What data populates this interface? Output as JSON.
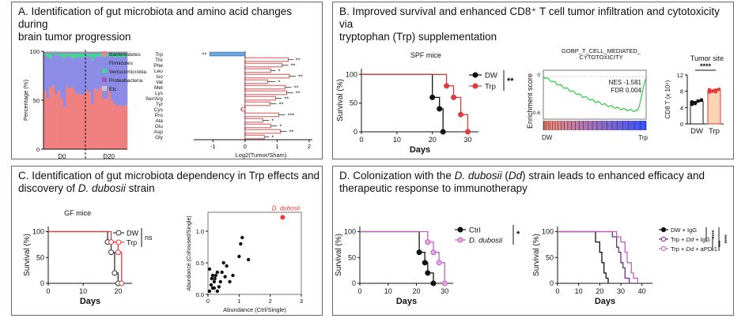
{
  "panels": {
    "a": {
      "title_l1": "A. Identification of gut microbiota and amino acid changes during",
      "title_l2": "brain tumor progression"
    },
    "b": {
      "title_l1": "B. Improved survival and enhanced CD8⁺ T cell tumor infiltration and cytotoxicity via",
      "title_l2": "tryptophan (Trp) supplementation"
    },
    "c": {
      "title_l1": "C. Identification of gut microbiota dependency in Trp effects and",
      "title_l2_pre": "discovery of ",
      "title_l2_italic": "D. dubosii",
      "title_l2_post": " strain"
    },
    "d": {
      "title_l1_pre": "D. Colonization with the ",
      "title_l1_italic": "D. dubosii",
      "title_l1_mid": " (",
      "title_l1_italic2": "Dd",
      "title_l1_post": ") strain leads to enhanced efficacy and",
      "title_l2": "therapeutic response to immunotherapy"
    }
  },
  "colors": {
    "red": "#e83a3a",
    "salmon": "#f08080",
    "blue": "#6b8be8",
    "magenta": "#c060c0",
    "bar_border": "#d04040",
    "trp_bar": "#6fa8dc"
  },
  "chart_data": [
    {
      "id": "a1",
      "type": "bar",
      "stacked": true,
      "ylabel": "Percentage (%)",
      "ylim": [
        0,
        100
      ],
      "yticks": [
        "0",
        "50",
        "100"
      ],
      "group_labels": [
        "D0",
        "D20"
      ],
      "legend": [
        "Bacteroidetes",
        "Firmicutes",
        "Verrucomicrobia",
        "Proteobacteria",
        "Etc"
      ],
      "legend_colors": [
        "#f08080",
        "#8c8ce6",
        "#40d890",
        "#9b59b6",
        "#c8c8c8"
      ],
      "bacteroidetes": [
        60,
        52,
        63,
        65,
        56,
        60,
        52,
        43,
        64,
        62,
        63,
        58,
        56,
        56,
        56,
        60,
        58,
        46,
        62,
        60,
        63,
        52,
        51,
        60,
        50,
        46,
        44,
        45,
        44,
        45
      ],
      "firmicutes": [
        36,
        42,
        30,
        33,
        40,
        36,
        42,
        50,
        32,
        33,
        30,
        36,
        38,
        38,
        38,
        35,
        37,
        45,
        32,
        35,
        32,
        42,
        44,
        35,
        45,
        48,
        50,
        49,
        50,
        50
      ],
      "verrucomicrobia": [
        2,
        4,
        5,
        1,
        2,
        2,
        4,
        5,
        2,
        3,
        5,
        4,
        4,
        4,
        4,
        3,
        3,
        7,
        4,
        3,
        3,
        4,
        3,
        3,
        3,
        4,
        4,
        4,
        4,
        3
      ],
      "proteobacteria": [
        1,
        1,
        1,
        0.5,
        1,
        1,
        1,
        1,
        1,
        1,
        1,
        1,
        1,
        1,
        1,
        1,
        1,
        1,
        1,
        1,
        1,
        1,
        1,
        1,
        1,
        1,
        1,
        1,
        1,
        1
      ]
    },
    {
      "id": "a2",
      "type": "bar",
      "orientation": "horizontal",
      "xlabel": "Log2(Tumor/Sham)",
      "xlim": [
        -1.6,
        2.1
      ],
      "xticks": [
        "-1",
        "0",
        "1",
        "2"
      ],
      "categories": [
        "Trp",
        "Thr",
        "Phe",
        "Leu",
        "Iso",
        "Val",
        "Met",
        "Lys",
        "Ser/Arg",
        "Tyr",
        "Cys",
        "Pro",
        "Ala",
        "Glu",
        "Asp",
        "Gly"
      ],
      "values": [
        -1.1,
        1.35,
        1.15,
        0.8,
        1.38,
        0.7,
        1.25,
        1.3,
        0.95,
        0.78,
        -0.1,
        1.05,
        0.55,
        0.8,
        1.1,
        0.6
      ],
      "errors": [
        0.0,
        0.15,
        0.2,
        0.15,
        0.2,
        0.25,
        0.2,
        0.2,
        0.2,
        0.2,
        0.05,
        0.2,
        0.2,
        0.2,
        0.2,
        0.15
      ],
      "significance": [
        "**",
        "**",
        "**",
        "*",
        "**",
        "*",
        "**",
        "**",
        "**",
        "**",
        "",
        "***",
        "*",
        "*",
        "**",
        "*"
      ]
    },
    {
      "id": "b1",
      "type": "line",
      "step": true,
      "title": "SPF mice",
      "xlabel": "Days",
      "ylabel": "Survival (%)",
      "xlim": [
        0,
        33
      ],
      "ylim": [
        0,
        110
      ],
      "xticks": [
        "0",
        "10",
        "20",
        "30"
      ],
      "yticks": [
        "0",
        "50",
        "100"
      ],
      "series": [
        {
          "name": "DW",
          "x": [
            0,
            20,
            20,
            22,
            22,
            23,
            23
          ],
          "y": [
            100,
            100,
            60,
            60,
            40,
            40,
            0
          ]
        },
        {
          "name": "Trp",
          "x": [
            0,
            24,
            24,
            26,
            26,
            28,
            28,
            30,
            30
          ],
          "y": [
            100,
            100,
            80,
            80,
            60,
            60,
            30,
            30,
            0
          ]
        }
      ],
      "markers": [
        {
          "series": "DW",
          "x": [
            20,
            22,
            23
          ],
          "y": [
            60,
            40,
            0
          ]
        },
        {
          "series": "Trp",
          "x": [
            24,
            26,
            28,
            30
          ],
          "y": [
            80,
            60,
            30,
            0
          ]
        }
      ],
      "annotation": "**"
    },
    {
      "id": "b2",
      "type": "line",
      "title_l1": "GOBP_T_CELL_MEDIATED_",
      "title_l2": "CYTOTOXICITY",
      "ylabel": "Enrichment score",
      "yticks": [
        "0",
        "-0.6"
      ],
      "xlabel_left": "DW",
      "xlabel_right": "Trp",
      "stat_nes": "NES -1.581",
      "stat_fdr": "FDR 0.004"
    },
    {
      "id": "b3",
      "type": "bar",
      "title": "Tumor site",
      "ylabel": "CD8 T (x 10⁴)",
      "ylim": [
        0,
        12
      ],
      "yticks": [
        "0",
        "4",
        "8",
        "12"
      ],
      "categories": [
        "DW",
        "Trp"
      ],
      "values": [
        5.5,
        8.2
      ],
      "errors": [
        0.5,
        0.4
      ],
      "points_dw": [
        4.8,
        5.2,
        5.6,
        5.9,
        5.4,
        5.0
      ],
      "points_trp": [
        7.8,
        8.0,
        8.3,
        8.5,
        8.4,
        8.1,
        7.9
      ],
      "significance": "****"
    },
    {
      "id": "c1",
      "type": "line",
      "step": true,
      "title": "GF mice",
      "xlabel": "Days",
      "ylabel": "Survival (%)",
      "xlim": [
        0,
        24
      ],
      "ylim": [
        0,
        110
      ],
      "xticks": [
        "0",
        "10",
        "20"
      ],
      "yticks": [
        "0",
        "50",
        "100"
      ],
      "series": [
        {
          "name": "DW",
          "x": [
            0,
            17,
            17,
            18,
            18,
            19,
            19,
            20,
            20
          ],
          "y": [
            100,
            100,
            80,
            80,
            60,
            60,
            20,
            20,
            0
          ]
        },
        {
          "name": "Trp",
          "x": [
            0,
            18,
            18,
            20,
            20,
            21,
            21
          ],
          "y": [
            100,
            100,
            80,
            80,
            60,
            60,
            0
          ]
        }
      ],
      "markers": [
        {
          "series": "DW",
          "x": [
            17,
            18,
            19,
            20
          ],
          "y": [
            80,
            60,
            20,
            0
          ]
        },
        {
          "series": "Trp",
          "x": [
            18,
            20,
            21
          ],
          "y": [
            80,
            60,
            0
          ]
        }
      ],
      "annotation": "ns"
    },
    {
      "id": "c2",
      "type": "scatter",
      "xlabel": "Abundance (Ctrl/Single)",
      "ylabel": "Abundance (Cohoused/Single)",
      "xlim": [
        0,
        3
      ],
      "ylim": [
        0,
        1.3
      ],
      "xticks": [
        "0",
        "1",
        "2",
        "3"
      ],
      "yticks": [
        "0.0",
        "0.5",
        "1.0"
      ],
      "x": [
        0.05,
        0.1,
        0.12,
        0.15,
        0.2,
        0.22,
        0.25,
        0.3,
        0.35,
        0.4,
        0.05,
        0.15,
        0.5,
        0.6,
        0.7,
        0.8,
        0.3,
        1.0,
        1.05,
        1.1,
        0.45,
        1.3,
        0.2,
        0.55
      ],
      "y": [
        0.05,
        0.15,
        0.25,
        0.3,
        0.1,
        0.25,
        0.3,
        0.35,
        0.12,
        0.2,
        0.4,
        0.1,
        0.5,
        0.45,
        0.2,
        0.3,
        0.05,
        0.6,
        0.8,
        0.9,
        0.35,
        0.55,
        0.2,
        0.28
      ],
      "highlight": {
        "label": "D. dubosii",
        "x": 2.4,
        "y": 1.22
      }
    },
    {
      "id": "d1",
      "type": "line",
      "step": true,
      "xlabel": "Days",
      "ylabel": "Survival (%)",
      "xlim": [
        0,
        33
      ],
      "ylim": [
        0,
        110
      ],
      "xticks": [
        "0",
        "10",
        "20",
        "30"
      ],
      "yticks": [
        "0",
        "50",
        "100"
      ],
      "series": [
        {
          "name": "Ctrl",
          "x": [
            0,
            21,
            21,
            23,
            23,
            24,
            24,
            26,
            26
          ],
          "y": [
            100,
            100,
            60,
            60,
            40,
            40,
            20,
            20,
            0
          ]
        },
        {
          "name": "D. dubosii",
          "x": [
            0,
            24,
            24,
            26,
            26,
            28,
            28,
            30,
            30
          ],
          "y": [
            100,
            100,
            80,
            80,
            60,
            60,
            40,
            40,
            0
          ]
        }
      ],
      "markers": [
        {
          "series": "Ctrl",
          "x": [
            21,
            23,
            24,
            26
          ],
          "y": [
            60,
            40,
            20,
            0
          ]
        },
        {
          "series": "D. dubosii",
          "x": [
            24,
            26,
            28,
            30
          ],
          "y": [
            80,
            60,
            40,
            0
          ]
        }
      ],
      "annotation": "*"
    },
    {
      "id": "d2",
      "type": "line",
      "step": true,
      "xlabel": "Days",
      "ylabel": "Survival (%)",
      "xlim": [
        0,
        45
      ],
      "ylim": [
        0,
        110
      ],
      "xticks": [
        "0",
        "10",
        "20",
        "30",
        "40"
      ],
      "yticks": [
        "0",
        "50",
        "100"
      ],
      "series": [
        {
          "name": "DW + IgG",
          "x": [
            0,
            18,
            18,
            20,
            20,
            21,
            21,
            22,
            22,
            23,
            23,
            24,
            24
          ],
          "y": [
            100,
            100,
            80,
            80,
            60,
            60,
            40,
            40,
            20,
            20,
            10,
            10,
            0
          ]
        },
        {
          "name_pre": "Trp + ",
          "name_italic": "Dd",
          "name_post": " + IgG",
          "x": [
            0,
            26,
            26,
            28,
            28,
            29,
            29,
            30,
            30,
            31,
            31,
            32,
            32,
            34,
            34
          ],
          "y": [
            100,
            100,
            90,
            90,
            70,
            70,
            60,
            60,
            40,
            40,
            30,
            30,
            10,
            10,
            0
          ]
        },
        {
          "name_pre": "Trp + ",
          "name_italic": "Dd",
          "name_post": " + aPD-1",
          "x": [
            0,
            28,
            28,
            30,
            30,
            32,
            32,
            33,
            33,
            35,
            35,
            36,
            36,
            38,
            38
          ],
          "y": [
            100,
            100,
            90,
            90,
            80,
            80,
            60,
            60,
            40,
            40,
            20,
            20,
            10,
            10,
            0
          ]
        }
      ],
      "significance": [
        "****",
        "***",
        "****"
      ]
    }
  ]
}
